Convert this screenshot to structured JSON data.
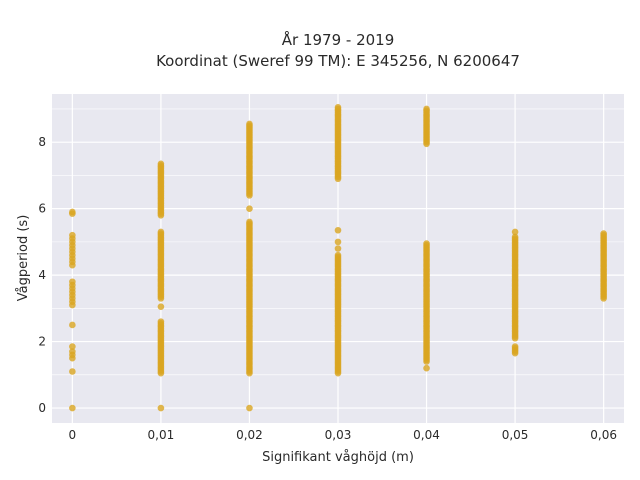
{
  "chart_data": {
    "type": "scatter",
    "title": "År 1979 - 2019",
    "subtitle": "Koordinat (Sweref 99 TM): E 345256, N 6200647",
    "xlabel": "Signifikant våghöjd (m)",
    "ylabel": "Vågperiod (s)",
    "xlim": [
      -0.0023,
      0.0623
    ],
    "ylim": [
      -0.45,
      9.45
    ],
    "x_ticks": [
      0,
      0.01,
      0.02,
      0.03,
      0.04,
      0.05,
      0.06
    ],
    "x_tick_labels": [
      "0",
      "0,01",
      "0,02",
      "0,03",
      "0,04",
      "0,05",
      "0,06"
    ],
    "y_ticks": [
      0,
      2,
      4,
      6,
      8
    ],
    "y_tick_labels": [
      "0",
      "2",
      "4",
      "6",
      "8"
    ],
    "grid": true,
    "marker_color": "#DAA520",
    "background_color": "#E8E8F0",
    "points": [
      {
        "x": 0,
        "y": [
          0,
          1.1,
          1.5,
          1.6,
          1.7,
          1.85,
          2.5,
          3.1,
          3.2,
          3.3,
          3.4,
          3.5,
          3.6,
          3.7,
          3.8,
          4.3,
          4.4,
          4.5,
          4.6,
          4.7,
          4.8,
          4.9,
          5.0,
          5.1,
          5.2,
          5.85,
          5.9
        ]
      },
      {
        "x": 0.01,
        "y": [
          0
        ],
        "ranges": [
          [
            1.05,
            2.6
          ],
          [
            3.3,
            5.3
          ],
          [
            5.8,
            7.35
          ]
        ],
        "extra": [
          3.05
        ]
      },
      {
        "x": 0.02,
        "y": [
          0
        ],
        "ranges": [
          [
            1.05,
            5.6
          ],
          [
            6.4,
            8.55
          ]
        ],
        "extra": [
          6.0
        ]
      },
      {
        "x": 0.03,
        "y": [
          4.8,
          5.0,
          5.35
        ],
        "ranges": [
          [
            1.05,
            4.6
          ],
          [
            6.9,
            9.05
          ]
        ]
      },
      {
        "x": 0.04,
        "y": [
          1.2
        ],
        "ranges": [
          [
            1.4,
            4.95
          ],
          [
            7.95,
            9.0
          ]
        ]
      },
      {
        "x": 0.05,
        "y": [
          5.3
        ],
        "ranges": [
          [
            1.65,
            1.85
          ],
          [
            2.1,
            5.15
          ]
        ]
      },
      {
        "x": 0.06,
        "y": [],
        "ranges": [
          [
            3.3,
            5.25
          ]
        ]
      }
    ]
  }
}
